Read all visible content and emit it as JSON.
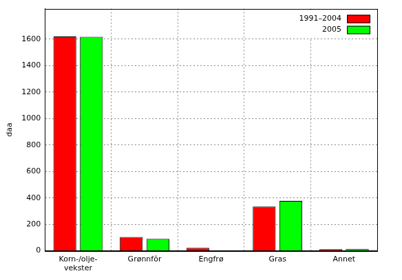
{
  "chart_data": {
    "type": "bar",
    "y_label": "daa",
    "categories": [
      "Korn-/olje-vekster",
      "Grønnfôr",
      "Engfrø",
      "Gras",
      "Annet"
    ],
    "series": [
      {
        "name": "1991–2004",
        "color": "#ff0000",
        "values": [
          1620,
          105,
          22,
          335,
          12
        ]
      },
      {
        "name": "2005",
        "color": "#00ff00",
        "values": [
          1618,
          90,
          0,
          378,
          15
        ]
      }
    ],
    "ylim": [
      0,
      1830
    ],
    "yticks": [
      0,
      200,
      400,
      600,
      800,
      1000,
      1200,
      1400,
      1600
    ],
    "grid": true,
    "legend": "upper right"
  }
}
